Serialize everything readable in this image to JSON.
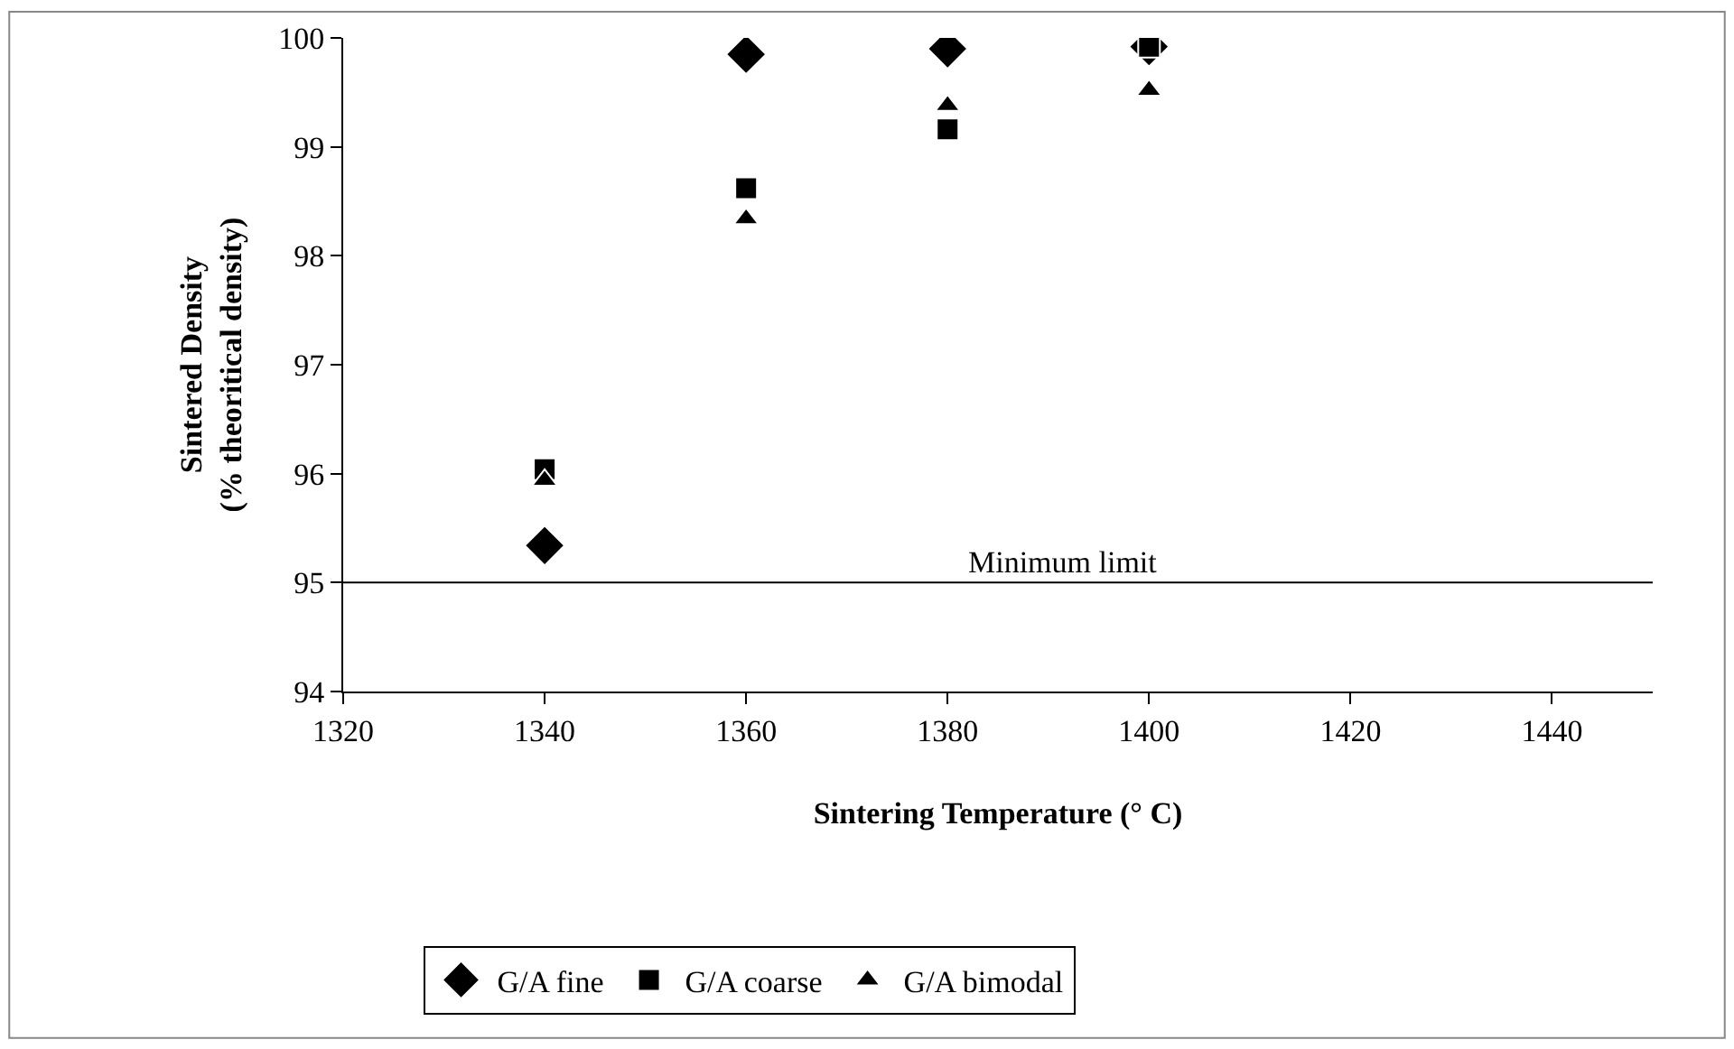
{
  "chart_data": {
    "type": "scatter",
    "xlabel": "Sintering Temperature (° C)",
    "ylabel": "Sintered Density\n(% theoritical density)",
    "x": [
      1340,
      1360,
      1380,
      1400
    ],
    "series": [
      {
        "name": "G/A fine",
        "color": "#000000",
        "marker": "diamond",
        "values": [
          95.34,
          99.85,
          99.9,
          99.92
        ]
      },
      {
        "name": "G/A coarse",
        "color": "#000000",
        "marker": "square",
        "values": [
          96.04,
          98.62,
          99.16,
          99.92
        ]
      },
      {
        "name": "G/A bimodal",
        "color": "#000000",
        "marker": "triangle",
        "values": [
          95.94,
          98.34,
          99.38,
          99.52
        ]
      }
    ],
    "xlim": [
      1320,
      1450
    ],
    "xticks": [
      1320,
      1340,
      1360,
      1380,
      1400,
      1420,
      1440
    ],
    "ylim": [
      94,
      100
    ],
    "yticks": [
      94,
      95,
      96,
      97,
      98,
      99,
      100
    ],
    "ref_lines": [
      {
        "axis": "y",
        "value": 95,
        "label": "Minimum limit",
        "color": "#000000"
      }
    ],
    "legend": "bottom"
  }
}
